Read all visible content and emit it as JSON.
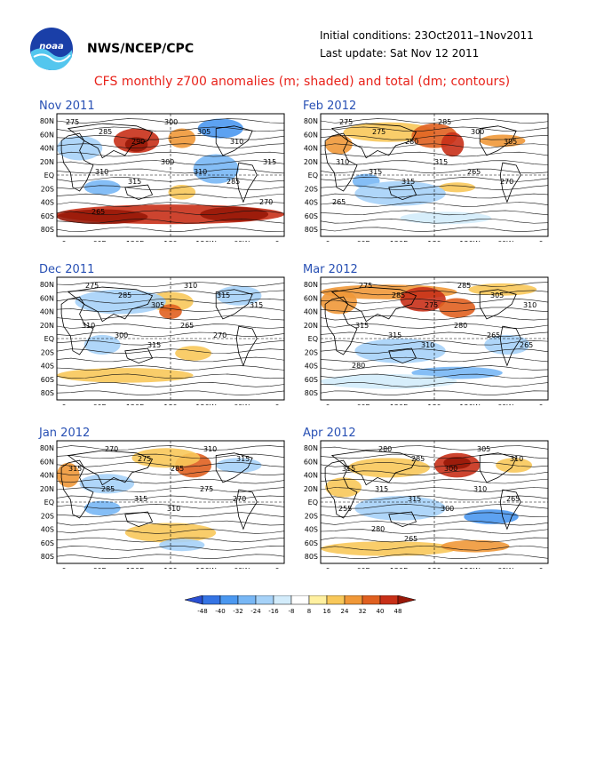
{
  "header": {
    "agency": "NWS/NCEP/CPC",
    "initial_conditions": "Initial conditions: 23Oct2011–1Nov2011",
    "last_update": "Last update: Sat Nov 12 2011",
    "logo_text": "noaa",
    "title": "CFS monthly z700 anomalies (m; shaded) and total (dm; contours)"
  },
  "map_axes": {
    "lat_labels": [
      "80N",
      "60N",
      "40N",
      "20N",
      "EQ",
      "20S",
      "40S",
      "60S",
      "80S"
    ],
    "lon_labels": [
      "0",
      "60E",
      "120E",
      "180",
      "120W",
      "60W",
      "0"
    ]
  },
  "panels": [
    {
      "title": "Nov 2011",
      "contour_labels": [
        "275",
        "285",
        "290",
        "300",
        "305",
        "310",
        "315",
        "310",
        "315",
        "300",
        "310",
        "285",
        "270",
        "265"
      ]
    },
    {
      "title": "Feb 2012",
      "contour_labels": [
        "275",
        "275",
        "280",
        "285",
        "300",
        "305",
        "310",
        "315",
        "315",
        "315",
        "265",
        "270",
        "265"
      ]
    },
    {
      "title": "Dec 2011",
      "contour_labels": [
        "275",
        "285",
        "305",
        "310",
        "315",
        "315",
        "310",
        "300",
        "315",
        "265",
        "270"
      ]
    },
    {
      "title": "Mar 2012",
      "contour_labels": [
        "275",
        "285",
        "275",
        "285",
        "305",
        "310",
        "315",
        "315",
        "310",
        "280",
        "265",
        "265",
        "280"
      ]
    },
    {
      "title": "Jan 2012",
      "contour_labels": [
        "270",
        "275",
        "285",
        "310",
        "315",
        "315",
        "285",
        "315",
        "310",
        "275",
        "270"
      ]
    },
    {
      "title": "Apr 2012",
      "contour_labels": [
        "280",
        "285",
        "300",
        "305",
        "310",
        "315",
        "315",
        "315",
        "300",
        "310",
        "265",
        "255",
        "280",
        "265"
      ]
    }
  ],
  "colorbar": {
    "tick_labels": [
      "-48",
      "-40",
      "-32",
      "-24",
      "-16",
      "-8",
      "8",
      "16",
      "24",
      "32",
      "40",
      "48"
    ],
    "colors": [
      "#2a4fd2",
      "#3574e4",
      "#4b98f0",
      "#78b7f5",
      "#a6d2f8",
      "#d3ecfb",
      "#ffffff",
      "#fff0a0",
      "#f8c85a",
      "#f09838",
      "#e06020",
      "#c83018",
      "#981808"
    ]
  }
}
